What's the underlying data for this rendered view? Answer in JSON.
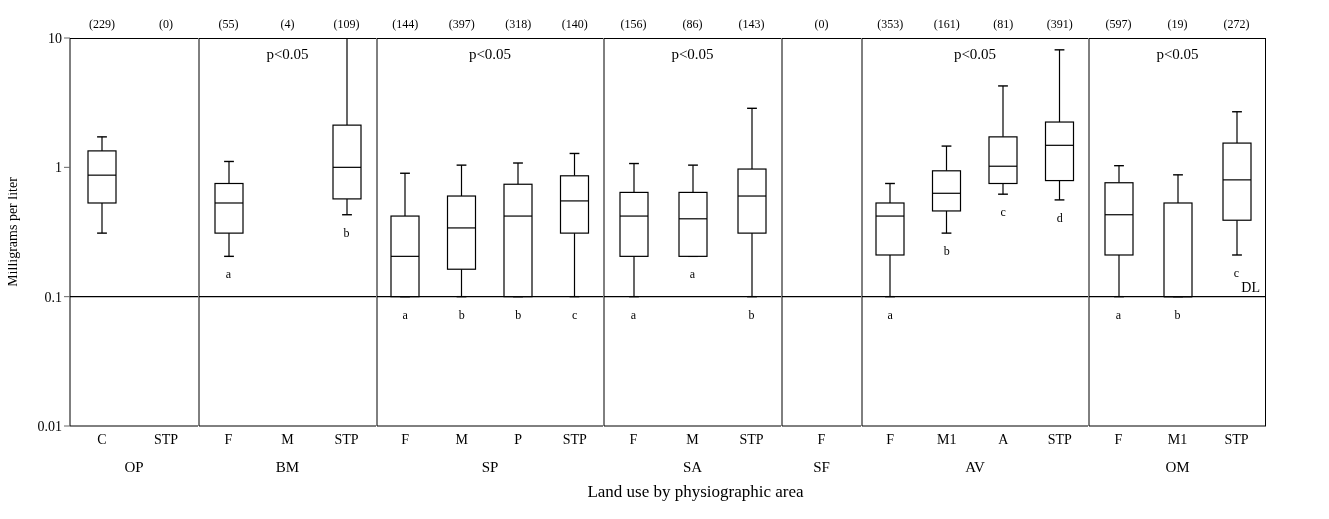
{
  "chart_data": [
    {
      "type": "box",
      "categories": [
        "C",
        "STP"
      ],
      "xlabel": "OP",
      "ylabel": "Milligrams per liter",
      "ylim": [
        0.01,
        10
      ],
      "yticks": [
        0.01,
        0.1,
        1,
        10
      ],
      "log": true,
      "boxes": [
        {
          "low": 0.31,
          "q1": 0.53,
          "median": 0.87,
          "q3": 1.34,
          "high": 1.72
        },
        null
      ],
      "value_labels": [
        "(229)",
        "(0)"
      ],
      "ref_lines": [
        {
          "axis": "y",
          "value": 0.1
        }
      ]
    },
    {
      "type": "box",
      "title": "p<0.05",
      "categories": [
        "F",
        "M",
        "STP"
      ],
      "xlabel": "BM",
      "ylim": [
        0.01,
        10
      ],
      "yticks": [
        0.01,
        0.1,
        1,
        10
      ],
      "log": true,
      "tick_labels": "x",
      "boxes": [
        {
          "low": 0.205,
          "q1": 0.31,
          "median": 0.53,
          "q3": 0.75,
          "high": 1.11
        },
        null,
        {
          "low": 0.43,
          "q1": 0.57,
          "median": 1.0,
          "q3": 2.12,
          "high": 10
        }
      ],
      "value_labels": [
        "(55)",
        "(4)",
        "(109)"
      ],
      "annotations": [
        "a",
        "b"
      ],
      "ref_lines": [
        {
          "axis": "y",
          "value": 0.1
        }
      ]
    },
    {
      "type": "box",
      "title": "p<0.05",
      "categories": [
        "F",
        "M",
        "P",
        "STP"
      ],
      "xlabel": "SP",
      "ylim": [
        0.01,
        10
      ],
      "yticks": [
        0.01,
        0.1,
        1,
        10
      ],
      "log": true,
      "tick_labels": "x",
      "boxes": [
        {
          "low": 0.1,
          "q1": 0.1,
          "median": 0.205,
          "q3": 0.42,
          "high": 0.9
        },
        {
          "low": 0.1,
          "q1": 0.163,
          "median": 0.34,
          "q3": 0.6,
          "high": 1.04
        },
        {
          "low": 0.1,
          "q1": 0.1,
          "median": 0.42,
          "q3": 0.74,
          "high": 1.08
        },
        {
          "low": 0.1,
          "q1": 0.31,
          "median": 0.55,
          "q3": 0.86,
          "high": 1.28
        }
      ],
      "value_labels": [
        "(144)",
        "(397)",
        "(318)",
        "(140)"
      ],
      "annotations": [
        "a",
        "b",
        "b",
        "c"
      ],
      "ref_lines": [
        {
          "axis": "y",
          "value": 0.1
        }
      ]
    },
    {
      "type": "box",
      "title": "p<0.05",
      "categories": [
        "F",
        "M",
        "STP"
      ],
      "xlabel": "SA",
      "ylim": [
        0.01,
        10
      ],
      "yticks": [
        0.01,
        0.1,
        1,
        10
      ],
      "log": true,
      "tick_labels": "x",
      "boxes": [
        {
          "low": 0.1,
          "q1": 0.205,
          "median": 0.42,
          "q3": 0.64,
          "high": 1.07
        },
        {
          "low": 0.205,
          "q1": 0.205,
          "median": 0.4,
          "q3": 0.64,
          "high": 1.04
        },
        {
          "low": 0.1,
          "q1": 0.31,
          "median": 0.6,
          "q3": 0.97,
          "high": 2.86
        }
      ],
      "value_labels": [
        "(156)",
        "(86)",
        "(143)"
      ],
      "annotations": [
        "a",
        "a",
        "b"
      ],
      "ref_lines": [
        {
          "axis": "y",
          "value": 0.1
        }
      ]
    },
    {
      "type": "box",
      "categories": [
        "F"
      ],
      "xlabel": "SF",
      "ylim": [
        0.01,
        10
      ],
      "yticks": [
        0.01,
        0.1,
        1,
        10
      ],
      "log": true,
      "tick_labels": "x",
      "boxes": [
        null
      ],
      "value_labels": [
        "(0)"
      ],
      "annotations": [
        "Land use by physiographic area"
      ],
      "ref_lines": [
        {
          "axis": "y",
          "value": 0.1
        }
      ]
    },
    {
      "type": "box",
      "title": "p<0.05",
      "categories": [
        "F",
        "M1",
        "A",
        "STP"
      ],
      "xlabel": "AV",
      "ylim": [
        0.01,
        10
      ],
      "yticks": [
        0.01,
        0.1,
        1,
        10
      ],
      "log": true,
      "tick_labels": "x",
      "boxes": [
        {
          "low": 0.1,
          "q1": 0.21,
          "median": 0.42,
          "q3": 0.53,
          "high": 0.75
        },
        {
          "low": 0.31,
          "q1": 0.46,
          "median": 0.63,
          "q3": 0.94,
          "high": 1.46
        },
        {
          "low": 0.62,
          "q1": 0.75,
          "median": 1.02,
          "q3": 1.72,
          "high": 4.26
        },
        {
          "low": 0.56,
          "q1": 0.79,
          "median": 1.48,
          "q3": 2.24,
          "high": 8.1
        }
      ],
      "value_labels": [
        "(353)",
        "(161)",
        "(81)",
        "(391)"
      ],
      "annotations": [
        "a",
        "b",
        "c",
        "d"
      ],
      "ref_lines": [
        {
          "axis": "y",
          "value": 0.1
        }
      ]
    },
    {
      "type": "box",
      "title": "p<0.05",
      "categories": [
        "F",
        "M1",
        "STP"
      ],
      "xlabel": "OM",
      "ylim": [
        0.01,
        10
      ],
      "yticks": [
        0.01,
        0.1,
        1,
        10
      ],
      "log": true,
      "tick_labels": "x",
      "boxes": [
        {
          "low": 0.1,
          "q1": 0.21,
          "median": 0.43,
          "q3": 0.76,
          "high": 1.03
        },
        {
          "low": 0.1,
          "q1": 0.1,
          "median": 0.1,
          "q3": 0.53,
          "high": 0.875
        },
        {
          "low": 0.21,
          "q1": 0.39,
          "median": 0.8,
          "q3": 1.54,
          "high": 2.69
        }
      ],
      "value_labels": [
        "(597)",
        "(19)",
        "(272)"
      ],
      "annotations": [
        "a",
        "b",
        "c"
      ],
      "ref_lines": [
        {
          "axis": "y",
          "value": 0.1,
          "label": "DL"
        }
      ]
    }
  ]
}
